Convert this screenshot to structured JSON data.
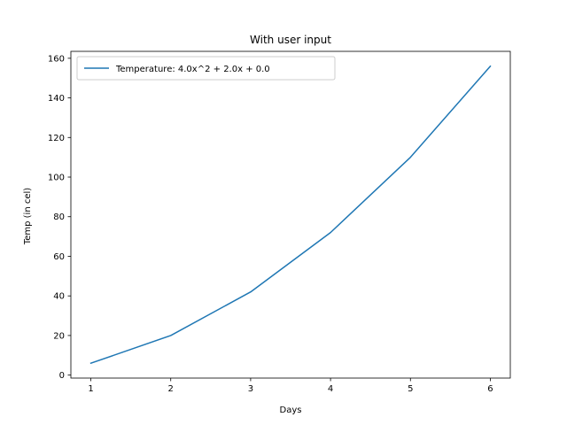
{
  "chart_data": {
    "type": "line",
    "title": "With user input",
    "xlabel": "Days",
    "ylabel": "Temp (in cel)",
    "x": [
      1,
      2,
      3,
      4,
      5,
      6
    ],
    "series": [
      {
        "name": "Temperature: 4.0x^2 + 2.0x + 0.0",
        "values": [
          6,
          20,
          42,
          72,
          110,
          156
        ],
        "color": "#1f77b4"
      }
    ],
    "xlim": [
      0.75,
      6.25
    ],
    "ylim": [
      -1.5,
      163.5
    ],
    "xticks": [
      1,
      2,
      3,
      4,
      5,
      6
    ],
    "yticks": [
      0,
      20,
      40,
      60,
      80,
      100,
      120,
      140,
      160
    ],
    "grid": false,
    "legend_position": "upper-left"
  }
}
